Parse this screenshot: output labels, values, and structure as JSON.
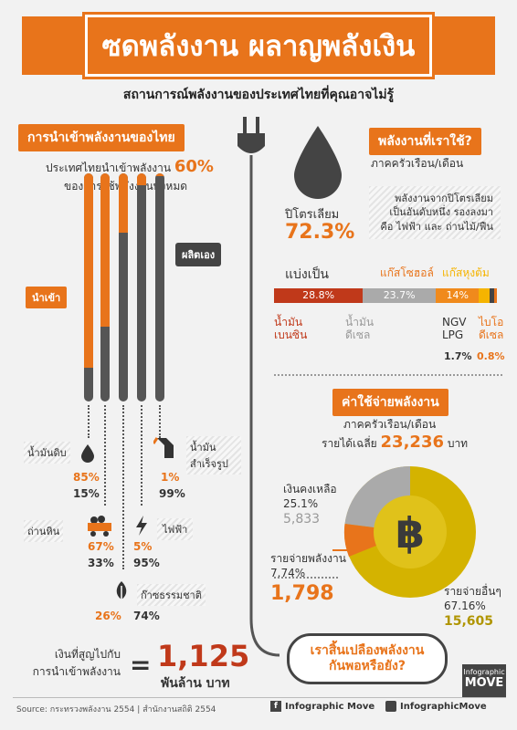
{
  "header": {
    "title": "ซดพลังงาน ผลาญพลังเงิน",
    "subtitle": "สถานการณ์พลังงานของประเทศไทยที่คุณอาจไม่รู้"
  },
  "imports": {
    "tag": "การนำเข้าพลังงานของไทย",
    "line1_prefix": "ประเทศไทยนำเข้าพลังงาน",
    "line1_value": "60%",
    "line2": "ของการใช้พลังงานทั้งหมด",
    "import_label": "นำเข้า",
    "produce_label": "ผลิตเอง",
    "sources": [
      {
        "label": "น้ำมันดิบ",
        "import": "85%",
        "self": "15%",
        "import_frac": 0.85
      },
      {
        "label": "ถ่านหิน",
        "import": "67%",
        "self": "33%",
        "import_frac": 0.67
      },
      {
        "label": "ก๊าซธรรมชาติ",
        "import": "26%",
        "self": "74%",
        "import_frac": 0.26
      },
      {
        "label": "ไฟฟ้า",
        "import": "5%",
        "self": "95%",
        "import_frac": 0.05
      },
      {
        "label": "น้ำมันสำเร็จรูป",
        "import": "1%",
        "self": "99%",
        "import_frac": 0.01
      }
    ],
    "loss_label_1": "เงินที่สูญไปกับ",
    "loss_label_2": "การนำเข้าพลังงาน",
    "loss_value": "1,125",
    "loss_unit": "พันล้าน บาท"
  },
  "usage": {
    "tag": "พลังงานที่เราใช้?",
    "sub": "ภาคครัวเรือน/เดือน",
    "note": "พลังงานจากปิโตรเลียม เป็นอันดับหนึ่ง รองลงมา คือ ไฟฟ้า และ ถ่านไม้/ฟืน",
    "petroleum_label": "ปิโตรเลียม",
    "petroleum_value": "72.3%",
    "split_label": "แบ่งเป็น",
    "segments": [
      {
        "name": "น้ำมันเบนซิน",
        "value": "28.8%",
        "pct": 28.8,
        "color": "#c0391a"
      },
      {
        "name": "น้ำมันดีเซล",
        "value": "23.7%",
        "pct": 23.7,
        "color": "#aaaaaa"
      },
      {
        "name": "แก๊สโซฮอล์",
        "value": "14%",
        "pct": 14,
        "color": "#f08a1c"
      },
      {
        "name": "แก๊สหุงต้ม",
        "value": "3.3%",
        "pct": 3.3,
        "color": "#f5b400"
      },
      {
        "name": "NGV LPG",
        "value": "1.7%",
        "pct": 1.7,
        "color": "#444444"
      },
      {
        "name": "ไบโอดีเซล",
        "value": "0.8%",
        "pct": 0.8,
        "color": "#e8741b"
      }
    ],
    "gasohol": "แก๊สโซฮอล์",
    "lpg_gas": "แก๊สหุงต้ม",
    "benzene": "น้ำมันเบนซิน",
    "diesel": "น้ำมันดีเซล",
    "ngv": "NGV LPG",
    "ngv_val": "1.7%",
    "bio": "ไบโอดีเซล",
    "bio_val": "0.8%"
  },
  "cost": {
    "tag": "ค่าใช้จ่ายพลังงาน",
    "sub": "ภาคครัวเรือน/เดือน",
    "income_label": "รายได้เฉลี่ย",
    "income_value": "23,236",
    "income_unit": "บาท",
    "remaining": {
      "label": "เงินคงเหลือ",
      "pct": "25.1%",
      "value": "5,833"
    },
    "energy": {
      "label": "รายจ่ายพลังงาน",
      "pct": "7.74%",
      "value": "1,798"
    },
    "other": {
      "label": "รายจ่ายอื่นๆ",
      "pct": "67.16%",
      "value": "15,605"
    },
    "currency_symbol": "฿",
    "question": "เราสิ้นเปลืองพลังงาน กันพอหรือยัง?"
  },
  "footer": {
    "source": "Source: กระทรวงพลังงาน 2554 | สำนักงานสถิติ 2554",
    "facebook": "Infographic Move",
    "twitter": "InfographicMove",
    "brand1": "Infographic",
    "brand2": "MOVE"
  },
  "colors": {
    "accent": "#e8741b",
    "dark": "#444444",
    "gold": "#d4b300"
  }
}
